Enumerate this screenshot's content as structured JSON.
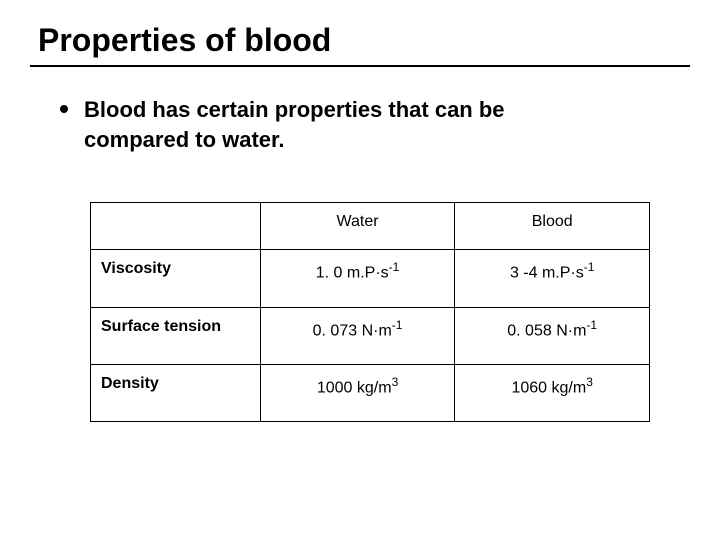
{
  "title": "Properties of blood",
  "bullet": "Blood has certain properties that can be compared to water.",
  "table": {
    "columns": [
      "",
      "Water",
      "Blood"
    ],
    "rows": [
      {
        "label": "Viscosity",
        "water": {
          "base": "1. 0 m.P·s",
          "exp": "-1"
        },
        "blood": {
          "base": "3 -4 m.P·s",
          "exp": "-1"
        }
      },
      {
        "label": "Surface tension",
        "water": {
          "base": "0. 073 N·m",
          "exp": "-1"
        },
        "blood": {
          "base": "0. 058 N·m",
          "exp": "-1"
        }
      },
      {
        "label": "Density",
        "water": {
          "base": "1000 kg/m",
          "exp": "3"
        },
        "blood": {
          "base": "1060 kg/m",
          "exp": "3"
        }
      }
    ]
  },
  "colors": {
    "background": "#ffffff",
    "text": "#000000",
    "border": "#000000"
  }
}
